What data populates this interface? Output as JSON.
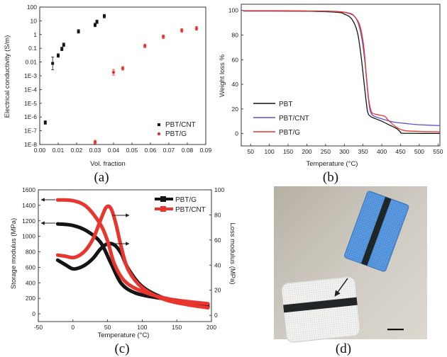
{
  "panel_labels": [
    "(a)",
    "(b)",
    "(c)",
    "(d)"
  ],
  "colors": {
    "black": "#141414",
    "red": "#e8352e",
    "blue": "#5b52c9",
    "photo_bg": "#c8c3ba"
  },
  "chart_data": [
    {
      "panel": "(a)",
      "type": "scatter",
      "xlabel": "Vol. fraction",
      "ylabel": "Electrical conductivity (S/m)",
      "xlim": [
        0.0,
        0.09
      ],
      "ylim": [
        1e-08,
        100
      ],
      "yscale": "log",
      "xticks": [
        "0.00",
        "0.01",
        "0.02",
        "0.03",
        "0.04",
        "0.05",
        "0.06",
        "0.07",
        "0.08",
        "0.09"
      ],
      "yticks": [
        "100",
        "10",
        "1",
        "0.1",
        "0.01",
        "1E-3",
        "1E-4",
        "1E-5",
        "1E-6",
        "1E-7",
        "1E-8"
      ],
      "legend_position": "bottom-right",
      "series": [
        {
          "name": "PBT/CNT",
          "color": "#141414",
          "x": [
            0.003,
            0.007,
            0.01,
            0.012,
            0.013,
            0.021,
            0.03,
            0.031,
            0.035
          ],
          "y": [
            4e-07,
            0.008,
            0.03,
            0.09,
            0.18,
            1.7,
            5,
            8.5,
            22
          ]
        },
        {
          "name": "PBT/G",
          "color": "#e8352e",
          "x": [
            0.03,
            0.04,
            0.045,
            0.057,
            0.067,
            0.077,
            0.085
          ],
          "y": [
            1.5e-08,
            0.0018,
            0.0035,
            0.15,
            0.7,
            2,
            2.8
          ]
        }
      ]
    },
    {
      "panel": "(b)",
      "type": "line",
      "xlabel": "Temperature (°C)",
      "ylabel": "Weight loss %",
      "xlim": [
        25,
        555
      ],
      "ylim": [
        -10,
        105
      ],
      "xticks": [
        "50",
        "100",
        "150",
        "200",
        "250",
        "300",
        "350",
        "400",
        "450",
        "500",
        "550"
      ],
      "yticks": [
        "100",
        "80",
        "60",
        "40",
        "20",
        "0"
      ],
      "legend_position": "lower-left",
      "series": [
        {
          "name": "PBT",
          "color": "#141414",
          "x": [
            30,
            100,
            200,
            280,
            300,
            320,
            335,
            345,
            355,
            362,
            370,
            380,
            400,
            420,
            440,
            450,
            455,
            500,
            555
          ],
          "y": [
            99.5,
            99.5,
            99.3,
            98.5,
            97,
            93,
            82,
            62,
            35,
            18,
            14,
            12.5,
            10,
            7,
            4,
            1.2,
            0.3,
            0.2,
            0.2
          ]
        },
        {
          "name": "PBT/CNT",
          "color": "#5b52c9",
          "x": [
            30,
            100,
            200,
            300,
            330,
            345,
            355,
            362,
            368,
            375,
            385,
            400,
            430,
            470,
            500,
            555
          ],
          "y": [
            99.6,
            99.6,
            99.5,
            98.5,
            94,
            80,
            58,
            35,
            20,
            15,
            13.5,
            12,
            9.5,
            8,
            7.2,
            6.5
          ]
        },
        {
          "name": "PBT/G",
          "color": "#e8352e",
          "x": [
            30,
            100,
            200,
            300,
            335,
            350,
            358,
            365,
            372,
            380,
            395,
            408,
            420,
            440,
            460,
            500,
            555
          ],
          "y": [
            99.8,
            99.8,
            99.6,
            98.5,
            92,
            75,
            50,
            28,
            18,
            16,
            15,
            14,
            10,
            5,
            2.5,
            1.8,
            1.5
          ]
        }
      ]
    },
    {
      "panel": "(c)",
      "type": "line",
      "xlabel": "Temperature (°C)",
      "ylabel": "Storage modulus (MPa)",
      "ylabel_right": "Loss modulus (MPa)",
      "xlim": [
        -50,
        200
      ],
      "ylim": [
        -100,
        1600
      ],
      "ylim_right": [
        -5,
        100
      ],
      "xticks": [
        "-50",
        "0",
        "50",
        "100",
        "150",
        "200"
      ],
      "yticks": [
        "1600",
        "1400",
        "1200",
        "1000",
        "800",
        "600",
        "400",
        "200",
        "0"
      ],
      "yticks_right": [
        "100",
        "80",
        "60",
        "40",
        "20",
        "0"
      ],
      "legend_position": "top-right",
      "series": [
        {
          "name": "PBT/G",
          "color": "#141414",
          "kind": "storage",
          "x": [
            -22,
            0,
            20,
            40,
            55,
            70,
            90,
            120,
            160,
            195
          ],
          "y": [
            1160,
            1140,
            1070,
            920,
            650,
            390,
            270,
            210,
            160,
            120
          ]
        },
        {
          "name": "PBT/G",
          "color": "#141414",
          "kind": "loss",
          "x": [
            -22,
            -10,
            0,
            10,
            20,
            30,
            40,
            50,
            60,
            70,
            80,
            100,
            130,
            160,
            195
          ],
          "y": [
            44,
            40,
            37,
            38,
            41,
            46,
            53,
            57,
            56,
            49,
            37,
            23,
            14,
            10,
            7
          ]
        },
        {
          "name": "PBT/CNT",
          "color": "#e8352e",
          "kind": "storage",
          "x": [
            -22,
            0,
            20,
            40,
            50,
            60,
            75,
            100,
            140,
            195
          ],
          "y": [
            1470,
            1460,
            1380,
            1150,
            940,
            640,
            420,
            290,
            190,
            130
          ]
        },
        {
          "name": "PBT/CNT",
          "color": "#e8352e",
          "kind": "loss",
          "x": [
            -22,
            -10,
            0,
            10,
            20,
            30,
            40,
            48,
            55,
            62,
            70,
            80,
            100,
            130,
            160,
            195
          ],
          "y": [
            48,
            47,
            46,
            48,
            53,
            62,
            76,
            86,
            85,
            73,
            54,
            36,
            22,
            13,
            9,
            6
          ]
        }
      ]
    }
  ]
}
